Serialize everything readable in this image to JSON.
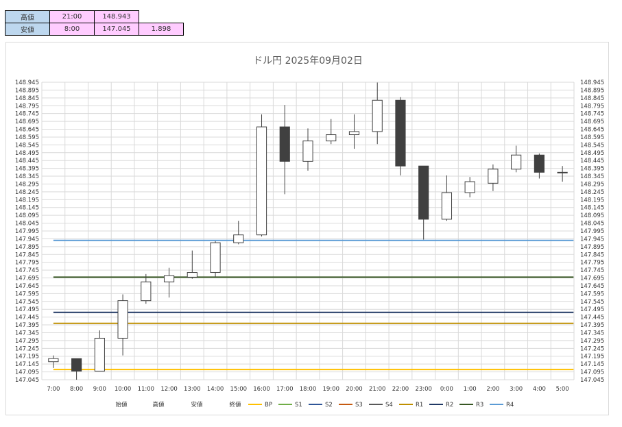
{
  "summary": {
    "high": {
      "label": "高値",
      "time": "21:00",
      "value": "148.943"
    },
    "low": {
      "label": "安値",
      "time": "8:00",
      "value": "147.045",
      "range": "1.898"
    }
  },
  "chart_data": {
    "type": "candlestick",
    "title": "ドル円  2025年09月02日",
    "categories": [
      "7:00",
      "8:00",
      "9:00",
      "10:00",
      "11:00",
      "12:00",
      "13:00",
      "14:00",
      "15:00",
      "16:00",
      "17:00",
      "18:00",
      "19:00",
      "20:00",
      "21:00",
      "22:00",
      "23:00",
      "0:00",
      "1:00",
      "2:00",
      "3:00",
      "4:00",
      "5:00"
    ],
    "ylim": [
      147.045,
      148.945
    ],
    "ytick_start": 147.045,
    "ytick_step": 0.05,
    "grid": true,
    "candles": [
      {
        "open": 147.16,
        "high": 147.2,
        "low": 147.12,
        "close": 147.18
      },
      {
        "open": 147.18,
        "high": 147.18,
        "low": 147.045,
        "close": 147.1
      },
      {
        "open": 147.1,
        "high": 147.36,
        "low": 147.1,
        "close": 147.31
      },
      {
        "open": 147.31,
        "high": 147.59,
        "low": 147.2,
        "close": 147.55
      },
      {
        "open": 147.55,
        "high": 147.72,
        "low": 147.53,
        "close": 147.67
      },
      {
        "open": 147.67,
        "high": 147.76,
        "low": 147.57,
        "close": 147.71
      },
      {
        "open": 147.7,
        "high": 147.87,
        "low": 147.69,
        "close": 147.73
      },
      {
        "open": 147.73,
        "high": 147.93,
        "low": 147.7,
        "close": 147.92
      },
      {
        "open": 147.92,
        "high": 148.06,
        "low": 147.91,
        "close": 147.97
      },
      {
        "open": 147.97,
        "high": 148.74,
        "low": 147.96,
        "close": 148.66
      },
      {
        "open": 148.66,
        "high": 148.8,
        "low": 148.23,
        "close": 148.44
      },
      {
        "open": 148.44,
        "high": 148.65,
        "low": 148.38,
        "close": 148.57
      },
      {
        "open": 148.57,
        "high": 148.71,
        "low": 148.55,
        "close": 148.61
      },
      {
        "open": 148.61,
        "high": 148.74,
        "low": 148.52,
        "close": 148.63
      },
      {
        "open": 148.63,
        "high": 148.943,
        "low": 148.55,
        "close": 148.83
      },
      {
        "open": 148.83,
        "high": 148.85,
        "low": 148.35,
        "close": 148.41
      },
      {
        "open": 148.41,
        "high": 148.41,
        "low": 147.94,
        "close": 148.07
      },
      {
        "open": 148.07,
        "high": 148.35,
        "low": 148.06,
        "close": 148.24
      },
      {
        "open": 148.24,
        "high": 148.34,
        "low": 148.21,
        "close": 148.31
      },
      {
        "open": 148.3,
        "high": 148.42,
        "low": 148.25,
        "close": 148.39
      },
      {
        "open": 148.39,
        "high": 148.54,
        "low": 148.37,
        "close": 148.48
      },
      {
        "open": 148.48,
        "high": 148.49,
        "low": 148.33,
        "close": 148.37
      },
      {
        "open": 148.37,
        "high": 148.41,
        "low": 148.31,
        "close": 148.37
      }
    ],
    "pivot_lines": [
      {
        "name": "BP",
        "value": 147.11,
        "color": "#ffc000"
      },
      {
        "name": "S1",
        "value": null,
        "color": "#70ad47"
      },
      {
        "name": "S2",
        "value": null,
        "color": "#2f5597"
      },
      {
        "name": "S3",
        "value": null,
        "color": "#c55a11"
      },
      {
        "name": "S4",
        "value": null,
        "color": "#595959"
      },
      {
        "name": "R1",
        "value": 147.405,
        "color": "#bf8f00"
      },
      {
        "name": "R2",
        "value": 147.475,
        "color": "#203864"
      },
      {
        "name": "R3",
        "value": 147.7,
        "color": "#375623"
      },
      {
        "name": "R4",
        "value": 147.935,
        "color": "#5b9bd5"
      }
    ],
    "legend": [
      "始値",
      "高値",
      "安値",
      "終値"
    ],
    "legend_position": "bottom",
    "colors": {
      "up_fill": "#ffffff",
      "down_fill": "#404040",
      "candle_stroke": "#404040",
      "grid": "#d9d9d9"
    }
  }
}
